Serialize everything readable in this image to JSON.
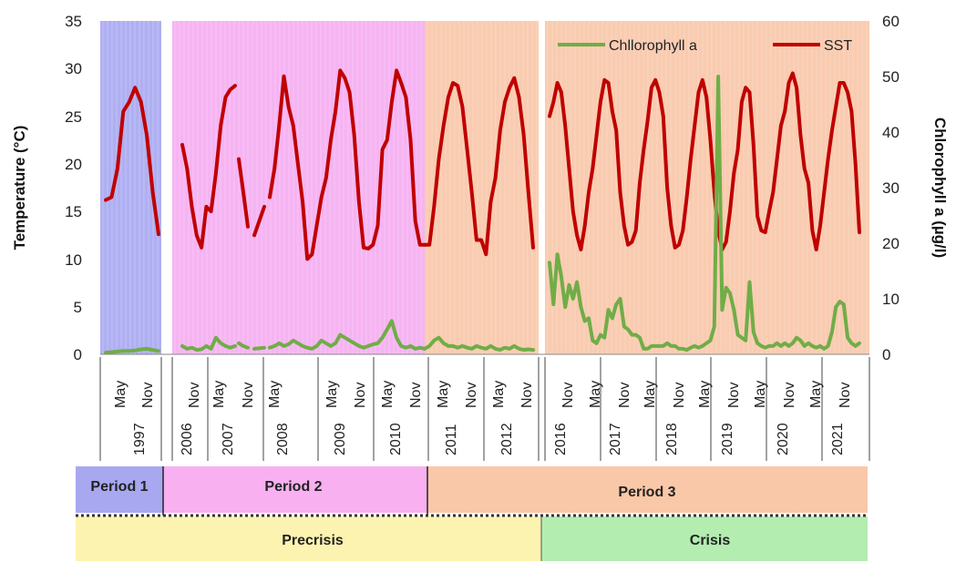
{
  "chart_data": {
    "type": "line",
    "ylabel_left": "Temperature (°C)",
    "ylabel_right": "Chlorophyll a (µg/l)",
    "ylim_left": [
      0,
      35
    ],
    "ylim_right": [
      0,
      60
    ],
    "yticks_left": [
      "0",
      "5",
      "10",
      "15",
      "20",
      "25",
      "30",
      "35"
    ],
    "yticks_right": [
      "0",
      "10",
      "20",
      "30",
      "40",
      "50",
      "60"
    ],
    "legend": [
      {
        "name": "Chllorophyll a",
        "color": "#70AD47"
      },
      {
        "name": "SST",
        "color": "#C00000"
      }
    ],
    "legend_position": "top-right",
    "x_groups": [
      {
        "year": "1997",
        "months": [
          "May",
          "Nov"
        ]
      },
      {
        "year": "2006",
        "months": [
          "Nov"
        ]
      },
      {
        "year": "2007",
        "months": [
          "May",
          "Nov"
        ]
      },
      {
        "year": "2008",
        "months": [
          "May"
        ]
      },
      {
        "year": "2009",
        "months": [
          "May",
          "Nov"
        ]
      },
      {
        "year": "2010",
        "months": [
          "May",
          "Nov"
        ]
      },
      {
        "year": "2011",
        "months": [
          "May",
          "Nov"
        ]
      },
      {
        "year": "2012",
        "months": [
          "May",
          "Nov"
        ]
      },
      {
        "year": "2016",
        "months": [
          "Nov"
        ]
      },
      {
        "year": "2017",
        "months": [
          "May",
          "Nov"
        ]
      },
      {
        "year": "2018",
        "months": [
          "May",
          "Nov"
        ]
      },
      {
        "year": "2019",
        "months": [
          "May",
          "Nov"
        ]
      },
      {
        "year": "2020",
        "months": [
          "May",
          "Nov"
        ]
      },
      {
        "year": "2021",
        "months": [
          "May",
          "Nov"
        ]
      }
    ],
    "sst_segments": [
      [
        16.2,
        16.5,
        19.5,
        25.5,
        26.5,
        28.0,
        26.5,
        23.0,
        17.0,
        12.6
      ],
      [
        22.0,
        19.5,
        15.5,
        12.5,
        11.2,
        15.5,
        15.0,
        19.0,
        24.0,
        27.0,
        27.8,
        28.2
      ],
      [
        20.5,
        17.0,
        13.4
      ],
      [
        12.5,
        15.5
      ],
      [
        16.5,
        19.5,
        24.0,
        29.2,
        26.0,
        24.0,
        20.0,
        16.0,
        10.0,
        10.5,
        13.5,
        16.5,
        18.5,
        22.5,
        25.5,
        29.8,
        29.0,
        27.5,
        23.0,
        16.0,
        11.2,
        11.1,
        11.5,
        13.5,
        21.5,
        22.5,
        26.5,
        29.8,
        28.5,
        27.0,
        22.5,
        14.0,
        11.5,
        11.5
      ],
      [
        11.5,
        11.5,
        15.5,
        20.5,
        24.0,
        27.0,
        28.5,
        28.2,
        26.0,
        21.5,
        17.0,
        12.0,
        12.0,
        10.5,
        16.0,
        18.5,
        23.5,
        26.5,
        28.0,
        29.0,
        27.0,
        23.0,
        17.0,
        11.2
      ],
      [
        25.0,
        26.5,
        28.5,
        27.5,
        24.0,
        19.5,
        15.0,
        12.5,
        11.0,
        13.5,
        17.0,
        19.5,
        23.0,
        26.5,
        28.8,
        28.5,
        25.5,
        23.5,
        17.0,
        13.5,
        11.5,
        11.8,
        13.0,
        18.0,
        21.5,
        24.5,
        28.0,
        28.8,
        27.5,
        25.0,
        17.5,
        13.5,
        11.2,
        11.5,
        13.0,
        16.5,
        20.5,
        24.0,
        27.5,
        28.8,
        27.0,
        22.5,
        17.0,
        13.0,
        11.0,
        11.8,
        15.0,
        19.0,
        21.5,
        26.5,
        28.0,
        27.5,
        22.0,
        14.5,
        13.0,
        12.8,
        15.0,
        17.0,
        20.5,
        24.0,
        25.5,
        28.5,
        29.5,
        28.0,
        23.0,
        19.5,
        18.0,
        13.0,
        11.0,
        13.5,
        17.0,
        20.5,
        23.5,
        26.0,
        28.5,
        28.5,
        27.5,
        25.5,
        20.0,
        12.8
      ]
    ],
    "chl_segments": [
      [
        0.3,
        0.4,
        0.5,
        0.6,
        0.6,
        0.7,
        0.9,
        1.0,
        0.8,
        0.6
      ],
      [
        1.5,
        1.0,
        1.2,
        0.8,
        0.9,
        1.5,
        1.0,
        3.0,
        2.0,
        1.5,
        1.2,
        1.5
      ],
      [
        2.0,
        1.5,
        1.2
      ],
      [
        1.0,
        1.2
      ],
      [
        1.2,
        1.5,
        2.0,
        1.5,
        1.8,
        2.5,
        2.0,
        1.5,
        1.2,
        1.0,
        1.5,
        2.5,
        2.0,
        1.5,
        2.0,
        3.5,
        3.0,
        2.5,
        2.0,
        1.5,
        1.2,
        1.5,
        1.8,
        2.0,
        3.0,
        4.5,
        6.0,
        3.0,
        1.5,
        1.2,
        1.5,
        1.0,
        1.2,
        1.0
      ],
      [
        1.0,
        1.5,
        2.5,
        3.0,
        2.0,
        1.5,
        1.5,
        1.2,
        1.5,
        1.2,
        1.0,
        1.5,
        1.2,
        1.0,
        1.5,
        1.0,
        0.8,
        1.2,
        1.0,
        1.5,
        1.0,
        0.8,
        0.9,
        0.8
      ],
      [
        16.5,
        9.0,
        18.0,
        14.0,
        8.5,
        12.5,
        10.0,
        13.0,
        8.5,
        6.0,
        6.5,
        2.5,
        2.0,
        3.5,
        3.0,
        8.0,
        6.5,
        9.0,
        10.0,
        5.0,
        4.5,
        3.5,
        3.5,
        3.0,
        1.0,
        1.0,
        1.5,
        1.5,
        1.5,
        1.5,
        2.0,
        1.5,
        1.5,
        1.0,
        1.0,
        0.8,
        1.2,
        1.5,
        1.2,
        1.5,
        2.0,
        2.5,
        5.0,
        50.0,
        8.0,
        12.0,
        11.0,
        8.0,
        3.5,
        3.0,
        2.5,
        13.0,
        4.0,
        2.0,
        1.5,
        1.2,
        1.5,
        1.5,
        2.0,
        1.5,
        2.0,
        1.5,
        2.0,
        3.0,
        2.5,
        1.5,
        2.0,
        1.5,
        1.2,
        1.5,
        1.0,
        1.5,
        4.0,
        8.5,
        9.5,
        9.0,
        3.0,
        2.0,
        1.5,
        2.0
      ]
    ]
  },
  "periods": [
    {
      "label": "Period 1",
      "color": "#A8A8F0"
    },
    {
      "label": "Period 2",
      "color": "#F8B0F0"
    },
    {
      "label": "Period 3",
      "color": "#F9C8A8"
    }
  ],
  "phases": [
    {
      "label": "Precrisis",
      "color": "#FDF3B0"
    },
    {
      "label": "Crisis",
      "color": "#B3EDB0"
    }
  ]
}
